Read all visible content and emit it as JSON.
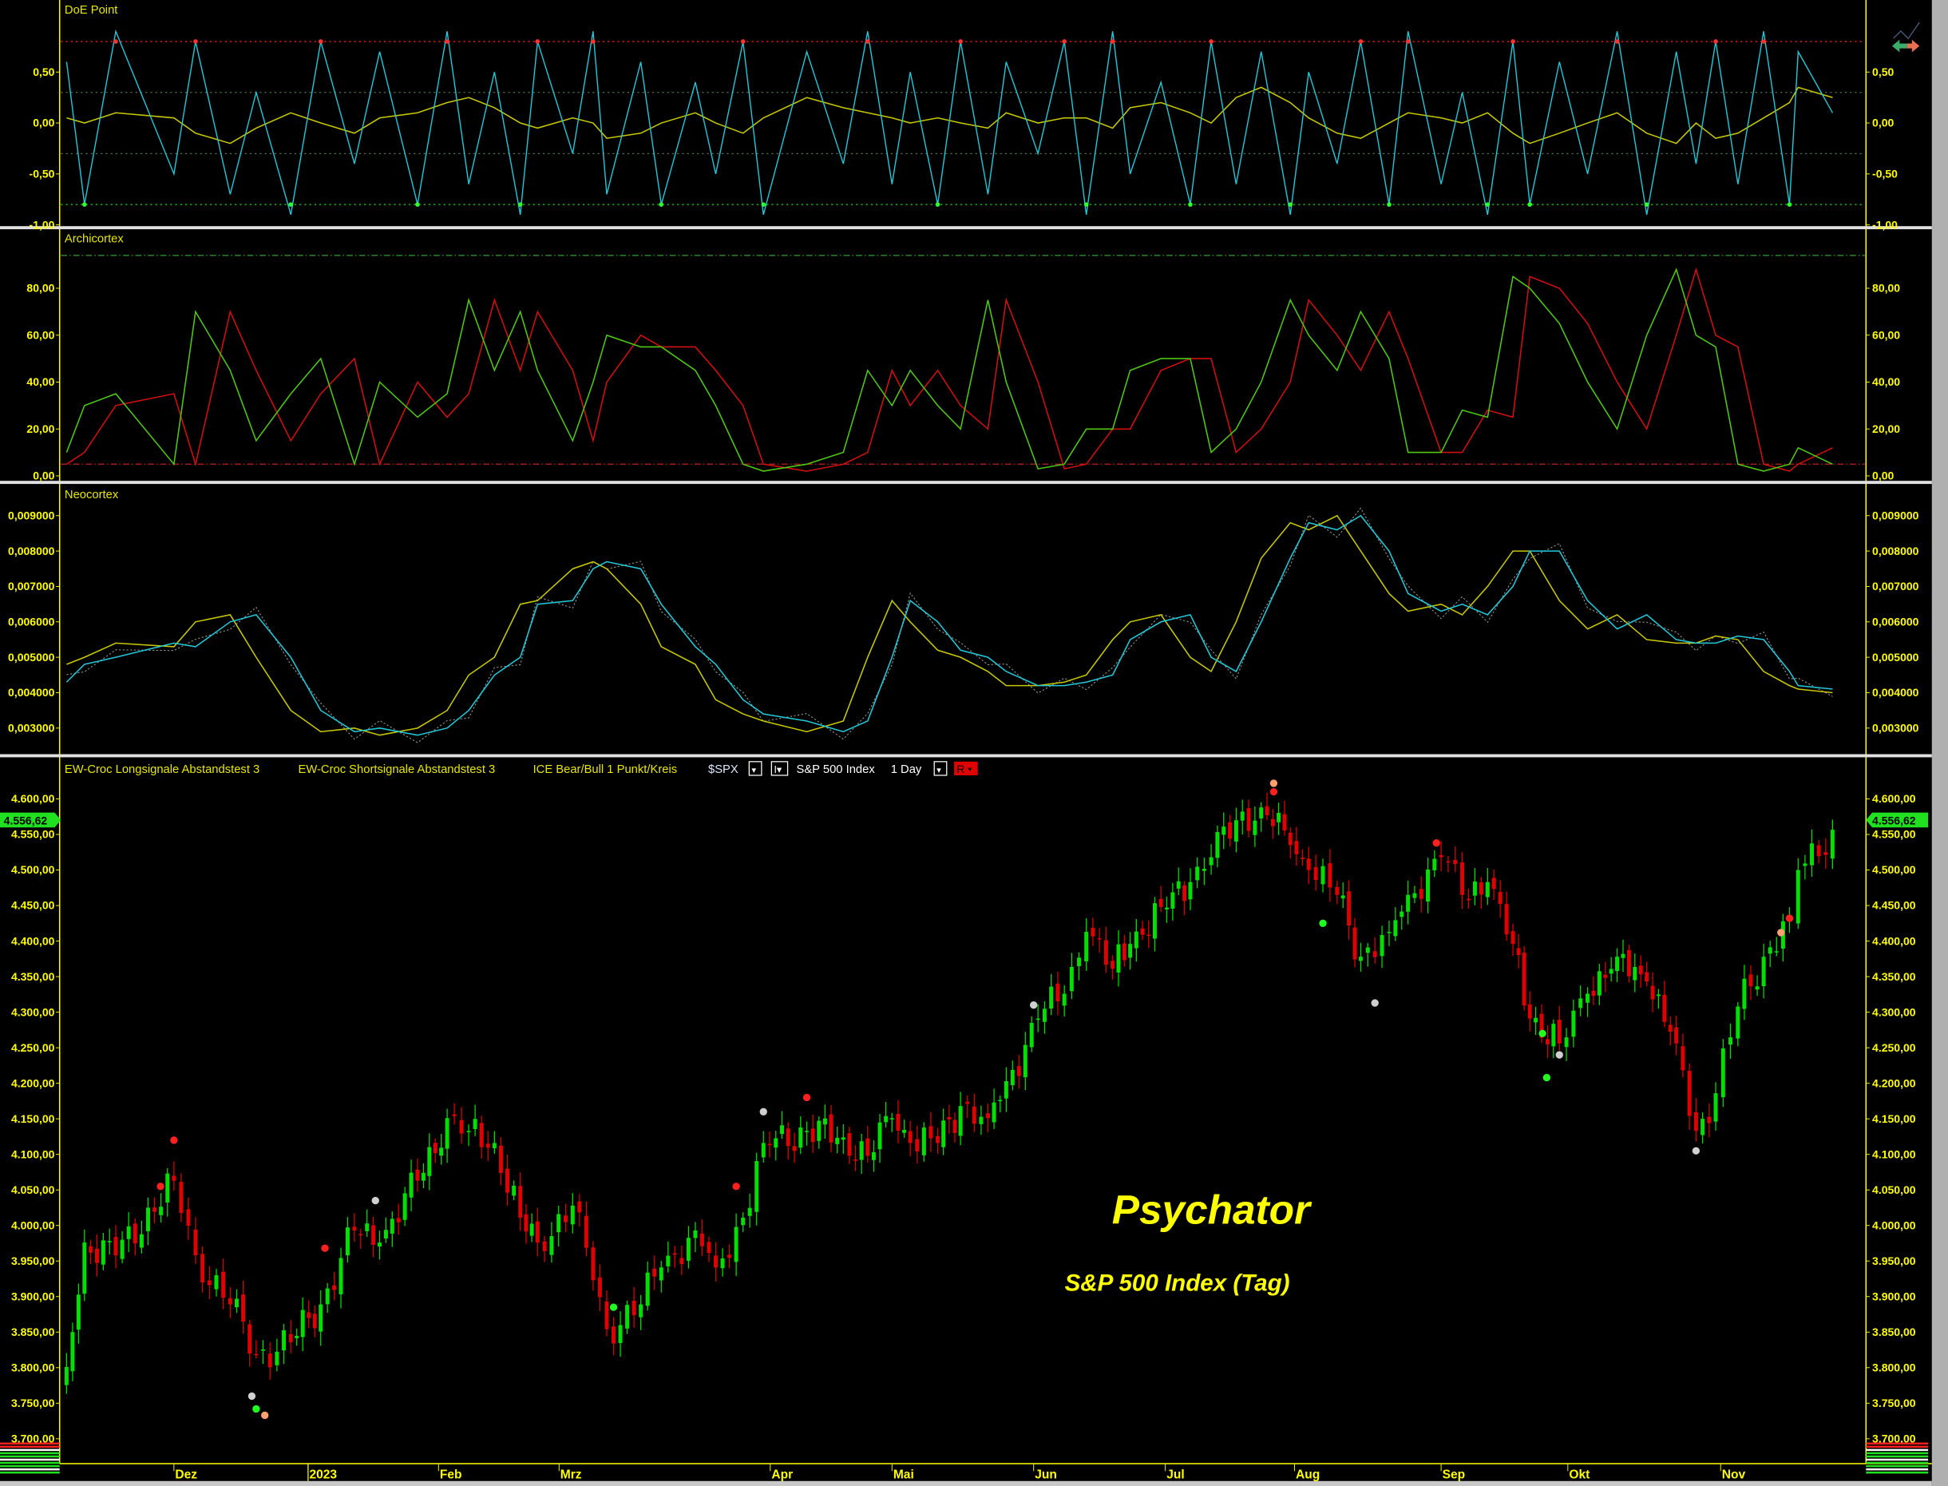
{
  "header": {
    "studies": [
      "EW-Croc Longsignale Abstandstest 3",
      "EW-Croc Shortsignale Abstandstest 3",
      "ICE Bear/Bull 1 Punkt/Kreis"
    ],
    "symbol": "$SPX",
    "instrument": "S&P 500 Index",
    "interval": "1 Day",
    "r_button": "R"
  },
  "watermark": {
    "title": "Psychator",
    "subtitle": "S&P 500 Index (Tag)"
  },
  "last_price": "4.556,62",
  "colors": {
    "up": "#00e000",
    "down": "#e00000",
    "axis": "#ffff00",
    "cyan": "#22c8d8",
    "yellow": "#c8c800",
    "green_line": "#4fc814",
    "red_line": "#d01010"
  },
  "chart_data": [
    {
      "type": "line",
      "title": "DoE Point",
      "ylim": [
        -1,
        1
      ],
      "ticks": [
        {
          "v": 0.5,
          "label": "0,50"
        },
        {
          "v": 0,
          "label": "0,00"
        },
        {
          "v": -0.5,
          "label": "-0,50"
        },
        {
          "v": -1,
          "label": "-1,00"
        }
      ],
      "levels": [
        0.8,
        0.3,
        -0.3,
        -0.8
      ],
      "series": [
        {
          "color": "cyan",
          "values": [
            0.6,
            -0.8,
            0.9,
            -0.5,
            0.8,
            -0.7,
            0.3,
            -0.9,
            0.8,
            -0.4,
            0.7,
            -0.8,
            0.9,
            -0.6,
            0.5,
            -0.9,
            0.8,
            -0.3,
            0.9,
            -0.7,
            0.6,
            -0.8,
            0.4,
            -0.5,
            0.8,
            -0.9,
            0.7,
            -0.4,
            0.9,
            -0.6,
            0.5,
            -0.8,
            0.8,
            -0.7,
            0.6,
            -0.3,
            0.8,
            -0.9,
            0.9,
            -0.5,
            0.4,
            -0.8,
            0.8,
            -0.6,
            0.7,
            -0.9,
            0.5,
            -0.4,
            0.8,
            -0.8,
            0.9,
            -0.6,
            0.3,
            -0.9,
            0.8,
            -0.8,
            0.6,
            -0.5,
            0.9,
            -0.9,
            0.7,
            -0.4,
            0.8,
            -0.6,
            0.9,
            -0.8,
            0.7,
            0.1
          ]
        },
        {
          "color": "yellow",
          "values": [
            0.05,
            0.0,
            0.1,
            0.05,
            -0.1,
            -0.2,
            -0.05,
            0.1,
            0.0,
            -0.1,
            0.05,
            0.1,
            0.2,
            0.25,
            0.15,
            0.0,
            -0.05,
            0.05,
            0.0,
            -0.15,
            -0.1,
            0.0,
            0.1,
            0.0,
            -0.1,
            0.05,
            0.25,
            0.15,
            0.1,
            0.05,
            0.0,
            0.05,
            0.0,
            -0.05,
            0.1,
            0.0,
            0.05,
            0.05,
            -0.05,
            0.15,
            0.2,
            0.1,
            0.0,
            0.25,
            0.35,
            0.2,
            0.05,
            -0.1,
            -0.15,
            0.0,
            0.1,
            0.05,
            0.0,
            0.1,
            -0.1,
            -0.2,
            -0.1,
            0.0,
            0.1,
            -0.1,
            -0.2,
            0.0,
            -0.15,
            -0.1,
            0.05,
            0.2,
            0.35,
            0.25
          ]
        }
      ]
    },
    {
      "type": "line",
      "title": "Archicortex",
      "ylim": [
        0,
        100
      ],
      "ticks": [
        {
          "v": 0,
          "label": "0,00"
        },
        {
          "v": 20,
          "label": "20,00"
        },
        {
          "v": 40,
          "label": "40,00"
        },
        {
          "v": 60,
          "label": "60,00"
        },
        {
          "v": 80,
          "label": "80,00"
        }
      ],
      "levels": [
        94,
        5
      ],
      "series": [
        {
          "color": "green_line",
          "values": [
            10,
            30,
            35,
            5,
            70,
            45,
            15,
            35,
            50,
            5,
            40,
            25,
            35,
            75,
            45,
            70,
            45,
            15,
            40,
            60,
            55,
            55,
            45,
            30,
            5,
            2,
            5,
            10,
            45,
            30,
            45,
            30,
            20,
            75,
            40,
            3,
            5,
            20,
            20,
            45,
            50,
            50,
            10,
            20,
            40,
            75,
            60,
            45,
            70,
            50,
            10,
            10,
            28,
            25,
            85,
            80,
            65,
            40,
            20,
            60,
            88,
            60,
            55,
            5,
            2,
            5,
            12,
            5
          ]
        },
        {
          "color": "red_line",
          "values": [
            5,
            10,
            30,
            35,
            5,
            70,
            45,
            15,
            35,
            50,
            5,
            40,
            25,
            35,
            75,
            45,
            70,
            45,
            15,
            40,
            60,
            55,
            55,
            45,
            30,
            5,
            2,
            5,
            10,
            45,
            30,
            45,
            30,
            20,
            75,
            40,
            3,
            5,
            20,
            20,
            45,
            50,
            50,
            10,
            20,
            40,
            75,
            60,
            45,
            70,
            50,
            10,
            10,
            28,
            25,
            85,
            80,
            65,
            40,
            20,
            60,
            88,
            60,
            55,
            5,
            2,
            5,
            12
          ]
        }
      ]
    },
    {
      "type": "line",
      "title": "Neocortex",
      "ylim": [
        0.0025,
        0.0095
      ],
      "ticks": [
        {
          "v": 0.003,
          "label": "0,003000"
        },
        {
          "v": 0.004,
          "label": "0,004000"
        },
        {
          "v": 0.005,
          "label": "0,005000"
        },
        {
          "v": 0.006,
          "label": "0,006000"
        },
        {
          "v": 0.007,
          "label": "0,007000"
        },
        {
          "v": 0.008,
          "label": "0,008000"
        },
        {
          "v": 0.009,
          "label": "0,009000"
        }
      ],
      "series": [
        {
          "color": "cyan",
          "values": [
            0.0043,
            0.0048,
            0.005,
            0.0054,
            0.0053,
            0.006,
            0.0062,
            0.005,
            0.0035,
            0.0029,
            0.003,
            0.0028,
            0.003,
            0.0035,
            0.0045,
            0.005,
            0.0065,
            0.0066,
            0.0075,
            0.0077,
            0.0075,
            0.0065,
            0.0053,
            0.0048,
            0.0038,
            0.0034,
            0.0032,
            0.0029,
            0.0032,
            0.005,
            0.0066,
            0.006,
            0.0052,
            0.005,
            0.0046,
            0.0042,
            0.0042,
            0.0043,
            0.0045,
            0.0055,
            0.006,
            0.0062,
            0.005,
            0.0046,
            0.006,
            0.0078,
            0.0088,
            0.0086,
            0.009,
            0.008,
            0.0068,
            0.0063,
            0.0065,
            0.0062,
            0.007,
            0.008,
            0.008,
            0.0066,
            0.0058,
            0.0062,
            0.0055,
            0.0054,
            0.0054,
            0.0056,
            0.0055,
            0.0046,
            0.0042,
            0.0041
          ]
        },
        {
          "color": "yellow",
          "values": [
            0.0048,
            0.005,
            0.0054,
            0.0053,
            0.006,
            0.0062,
            0.005,
            0.0035,
            0.0029,
            0.003,
            0.0028,
            0.003,
            0.0035,
            0.0045,
            0.005,
            0.0065,
            0.0066,
            0.0075,
            0.0077,
            0.0075,
            0.0065,
            0.0053,
            0.0048,
            0.0038,
            0.0034,
            0.0032,
            0.0029,
            0.0032,
            0.005,
            0.0066,
            0.006,
            0.0052,
            0.005,
            0.0046,
            0.0042,
            0.0042,
            0.0043,
            0.0045,
            0.0055,
            0.006,
            0.0062,
            0.005,
            0.0046,
            0.006,
            0.0078,
            0.0088,
            0.0086,
            0.009,
            0.008,
            0.0068,
            0.0063,
            0.0065,
            0.0062,
            0.007,
            0.008,
            0.008,
            0.0066,
            0.0058,
            0.0062,
            0.0055,
            0.0054,
            0.0054,
            0.0056,
            0.0055,
            0.0046,
            0.0042,
            0.0041,
            0.004
          ]
        }
      ]
    },
    {
      "type": "candlestick",
      "title": "S&P 500 Index",
      "ylim": [
        3690,
        4620
      ],
      "ticks": [
        "3.700,00",
        "3.750,00",
        "3.800,00",
        "3.850,00",
        "3.900,00",
        "3.950,00",
        "4.000,00",
        "4.050,00",
        "4.100,00",
        "4.150,00",
        "4.200,00",
        "4.250,00",
        "4.300,00",
        "4.350,00",
        "4.400,00",
        "4.450,00",
        "4.500,00",
        "4.550,00",
        "4.600,00"
      ],
      "dates": [
        "2022-11-07",
        "2022-11-11",
        "2022-11-18",
        "2022-12-01",
        "2022-12-06",
        "2022-12-14",
        "2022-12-20",
        "2022-12-28",
        "2023-01-04",
        "2023-01-12",
        "2023-01-18",
        "2023-01-27",
        "2023-02-03",
        "2023-02-08",
        "2023-02-14",
        "2023-02-20",
        "2023-02-24",
        "2023-03-03",
        "2023-03-06",
        "2023-03-08",
        "2023-03-13",
        "2023-03-16",
        "2023-03-21",
        "2023-03-24",
        "2023-03-28",
        "2023-03-31",
        "2023-04-10",
        "2023-04-19",
        "2023-04-25",
        "2023-05-01",
        "2023-05-05",
        "2023-05-11",
        "2023-05-16",
        "2023-05-22",
        "2023-05-26",
        "2023-06-02",
        "2023-06-08",
        "2023-06-13",
        "2023-06-19",
        "2023-06-23",
        "2023-06-30",
        "2023-07-07",
        "2023-07-12",
        "2023-07-18",
        "2023-07-24",
        "2023-07-31",
        "2023-08-04",
        "2023-08-10",
        "2023-08-15",
        "2023-08-21",
        "2023-08-25",
        "2023-09-01",
        "2023-09-06",
        "2023-09-12",
        "2023-09-18",
        "2023-09-22",
        "2023-09-29",
        "2023-10-05",
        "2023-10-11",
        "2023-10-17",
        "2023-10-23",
        "2023-10-27",
        "2023-10-31",
        "2023-11-03",
        "2023-11-06",
        "2023-11-09",
        "2023-11-10",
        "2023-11-14"
      ],
      "close": [
        3801,
        3976,
        3958,
        4063,
        3958,
        3889,
        3819,
        3836,
        3889,
        3993,
        3976,
        4063,
        4151,
        4133,
        4116,
        4011,
        3976,
        4028,
        3923,
        3854,
        3889,
        3941,
        3993,
        3941,
        4011,
        4116,
        4133,
        4124,
        4098,
        4151,
        4116,
        4116,
        4168,
        4151,
        4203,
        4291,
        4326,
        4413,
        4361,
        4396,
        4448,
        4483,
        4518,
        4570,
        4588,
        4535,
        4500,
        4465,
        4378,
        4413,
        4465,
        4518,
        4465,
        4483,
        4396,
        4291,
        4256,
        4326,
        4378,
        4343,
        4256,
        4133,
        4186,
        4308,
        4378,
        4430,
        4500,
        4556.62
      ],
      "signals": [
        {
          "date": "2022-11-28",
          "price": 4055,
          "color": "#ff2020"
        },
        {
          "date": "2022-12-01",
          "price": 4120,
          "color": "#ff2020"
        },
        {
          "date": "2022-12-19",
          "price": 3760,
          "color": "#d0d0d0"
        },
        {
          "date": "2022-12-20",
          "price": 3742,
          "color": "#20ff20"
        },
        {
          "date": "2022-12-22",
          "price": 3733,
          "color": "#ffa070"
        },
        {
          "date": "2023-01-05",
          "price": 3968,
          "color": "#ff2020"
        },
        {
          "date": "2023-01-17",
          "price": 4035,
          "color": "#d0d0d0"
        },
        {
          "date": "2023-03-09",
          "price": 3885,
          "color": "#20ff20"
        },
        {
          "date": "2023-03-27",
          "price": 4055,
          "color": "#ff2020"
        },
        {
          "date": "2023-03-31",
          "price": 4160,
          "color": "#d0d0d0"
        },
        {
          "date": "2023-04-10",
          "price": 4180,
          "color": "#ff2020"
        },
        {
          "date": "2023-06-01",
          "price": 4310,
          "color": "#d0d0d0"
        },
        {
          "date": "2023-07-27",
          "price": 4610,
          "color": "#ff2020"
        },
        {
          "date": "2023-07-27",
          "price": 4622,
          "color": "#ffa070"
        },
        {
          "date": "2023-08-07",
          "price": 4425,
          "color": "#20ff20"
        },
        {
          "date": "2023-08-18",
          "price": 4313,
          "color": "#d0d0d0"
        },
        {
          "date": "2023-08-31",
          "price": 4538,
          "color": "#ff2020"
        },
        {
          "date": "2023-09-25",
          "price": 4270,
          "color": "#20ff20"
        },
        {
          "date": "2023-09-26",
          "price": 4208,
          "color": "#20ff20"
        },
        {
          "date": "2023-09-29",
          "price": 4240,
          "color": "#d0d0d0"
        },
        {
          "date": "2023-10-27",
          "price": 4105,
          "color": "#d0d0d0"
        },
        {
          "date": "2023-11-09",
          "price": 4432,
          "color": "#ff2020"
        },
        {
          "date": "2023-11-08",
          "price": 4412,
          "color": "#ffa070"
        }
      ]
    }
  ],
  "x_axis": [
    {
      "label": "Dez",
      "date": "2022-12-01"
    },
    {
      "label": "2023",
      "date": "2023-01-01"
    },
    {
      "label": "Feb",
      "date": "2023-02-01"
    },
    {
      "label": "Mrz",
      "date": "2023-03-01"
    },
    {
      "label": "Apr",
      "date": "2023-04-01"
    },
    {
      "label": "Mai",
      "date": "2023-05-01"
    },
    {
      "label": "Jun",
      "date": "2023-06-01"
    },
    {
      "label": "Jul",
      "date": "2023-07-01"
    },
    {
      "label": "Aug",
      "date": "2023-08-01"
    },
    {
      "label": "Sep",
      "date": "2023-09-01"
    },
    {
      "label": "Okt",
      "date": "2023-10-01"
    },
    {
      "label": "Nov",
      "date": "2023-11-01"
    }
  ]
}
